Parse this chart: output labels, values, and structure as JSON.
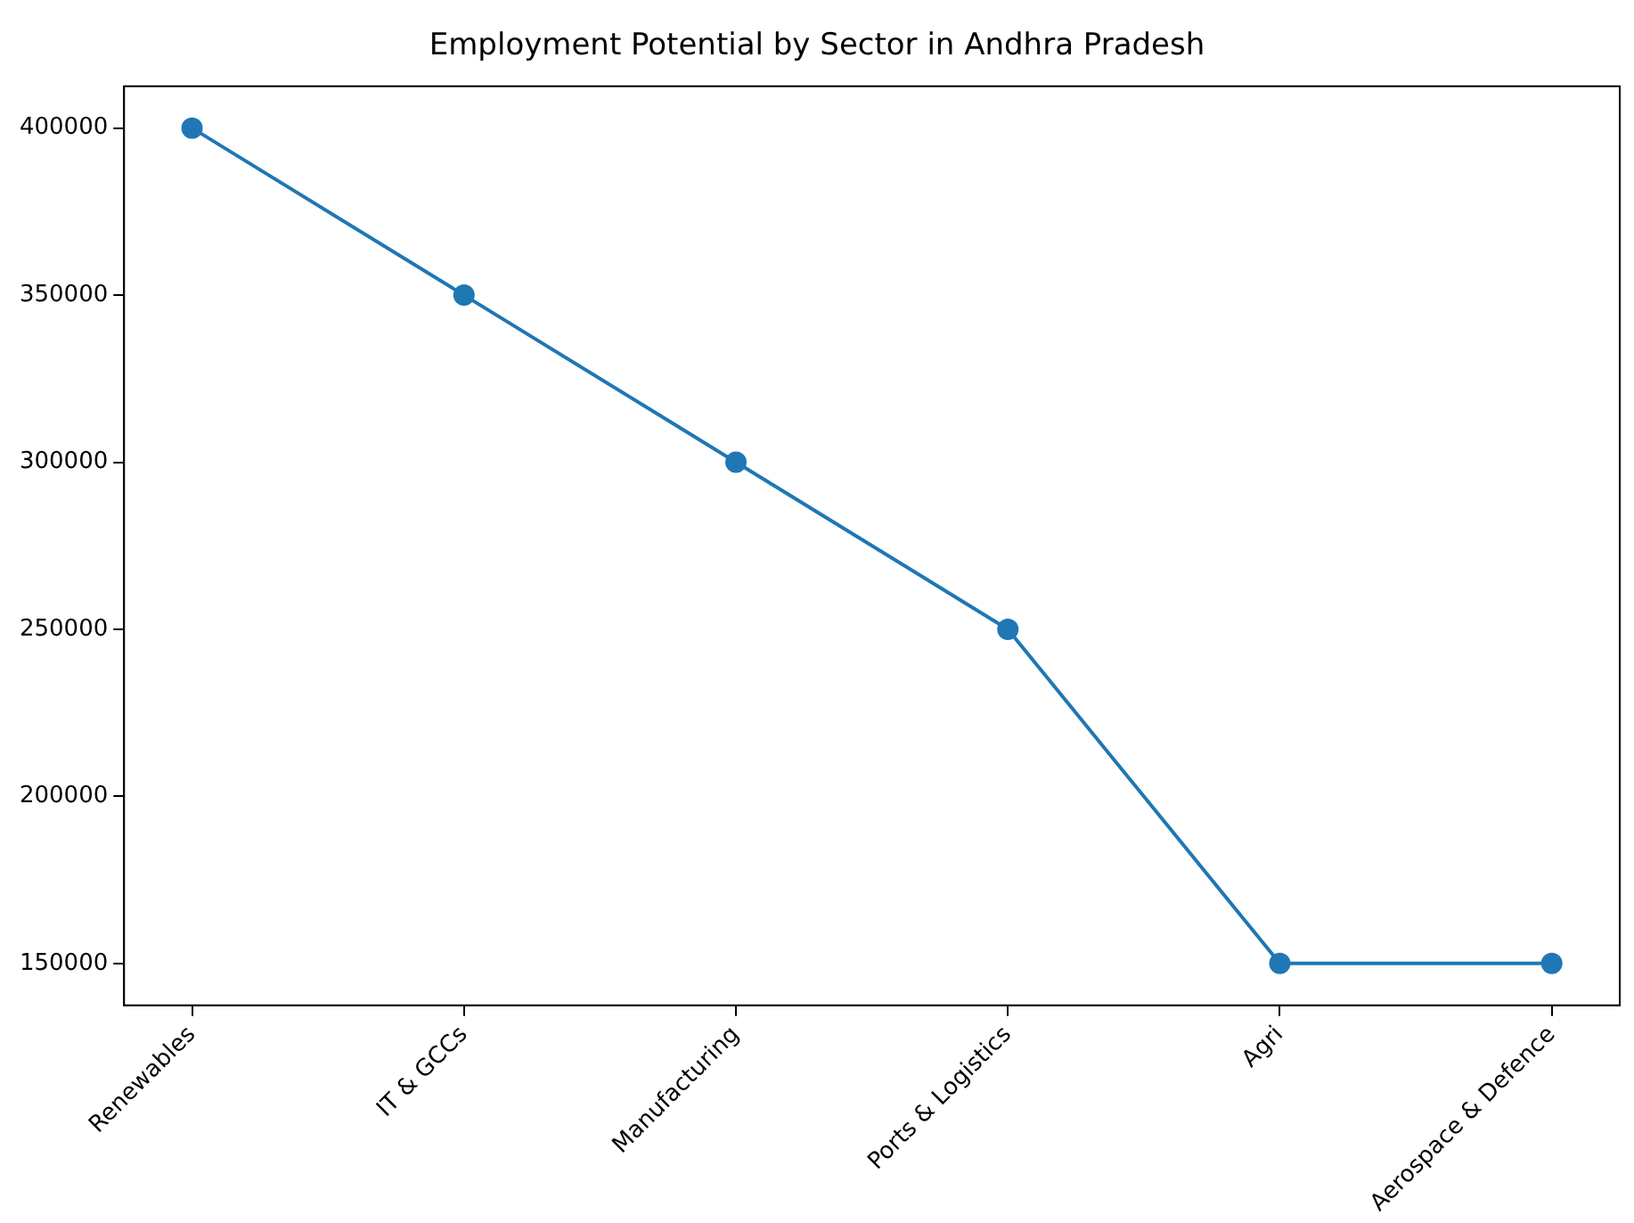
{
  "chart_data": {
    "type": "line",
    "title": "Employment Potential by Sector in Andhra Pradesh",
    "categories": [
      "Renewables",
      "IT & GCCs",
      "Manufacturing",
      "Ports & Logistics",
      "Agri",
      "Aerospace & Defence"
    ],
    "series": [
      {
        "color": "#1f77b4",
        "values": [
          400000,
          350000,
          300000,
          250000,
          150000,
          150000
        ]
      }
    ],
    "ylim": [
      137500,
      412500
    ],
    "yticks": [
      150000,
      200000,
      250000,
      300000,
      350000,
      400000
    ],
    "grid": false,
    "legend": false,
    "marker": "circle",
    "line_style": "solid"
  }
}
